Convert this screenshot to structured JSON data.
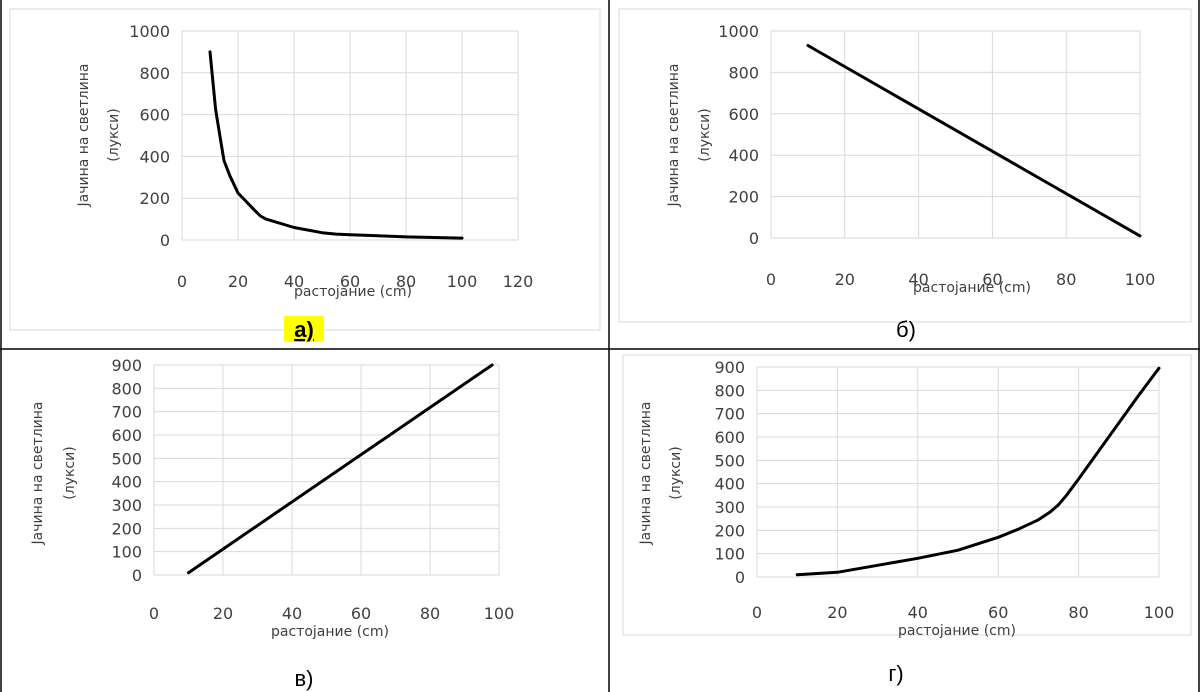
{
  "chart_data": [
    {
      "id": "a",
      "type": "line",
      "xlabel": "растојание (cm)",
      "ylabel_line1": "Јачина на светлина",
      "ylabel_line2": "(лукси)",
      "caption": "а)",
      "caption_highlight": "#ffff00",
      "xlim": [
        0,
        120
      ],
      "ylim": [
        0,
        1000
      ],
      "xticks": [
        0,
        20,
        40,
        60,
        80,
        100,
        120
      ],
      "yticks": [
        0,
        200,
        400,
        600,
        800,
        1000
      ],
      "grid": true,
      "series": [
        {
          "color": "#000000",
          "x": [
            10,
            12,
            14,
            15,
            17,
            20,
            25,
            28,
            30,
            40,
            50,
            55,
            60,
            70,
            80,
            90,
            100
          ],
          "y": [
            900,
            625,
            460,
            380,
            310,
            225,
            155,
            115,
            100,
            60,
            35,
            28,
            25,
            20,
            15,
            12,
            9
          ]
        }
      ]
    },
    {
      "id": "b",
      "type": "line",
      "xlabel": "растојание (cm)",
      "ylabel_line1": "Јачина на светлина",
      "ylabel_line2": "(лукси)",
      "caption": "б)",
      "xlim": [
        0,
        100
      ],
      "ylim": [
        0,
        1000
      ],
      "xticks": [
        0,
        20,
        40,
        60,
        80,
        100
      ],
      "yticks": [
        0,
        200,
        400,
        600,
        800,
        1000
      ],
      "grid": true,
      "series": [
        {
          "color": "#000000",
          "x": [
            10,
            100
          ],
          "y": [
            930,
            10
          ]
        }
      ]
    },
    {
      "id": "c",
      "type": "line",
      "xlabel": "растојание (cm)",
      "ylabel_line1": "Јачина на светлина",
      "ylabel_line2": "(лукси)",
      "caption": "в)",
      "xlim": [
        0,
        100
      ],
      "ylim": [
        0,
        900
      ],
      "xticks": [
        0,
        20,
        40,
        60,
        80,
        100
      ],
      "yticks": [
        0,
        100,
        200,
        300,
        400,
        500,
        600,
        700,
        800,
        900
      ],
      "grid": true,
      "series": [
        {
          "color": "#000000",
          "x": [
            10,
            98
          ],
          "y": [
            10,
            900
          ]
        }
      ]
    },
    {
      "id": "d",
      "type": "line",
      "xlabel": "растојание (cm)",
      "ylabel_line1": "Јачина на светлина",
      "ylabel_line2": "(лукси)",
      "caption": "г)",
      "xlim": [
        0,
        100
      ],
      "ylim": [
        0,
        900
      ],
      "xticks": [
        0,
        20,
        40,
        60,
        80,
        100
      ],
      "yticks": [
        0,
        100,
        200,
        300,
        400,
        500,
        600,
        700,
        800,
        900
      ],
      "grid": true,
      "series": [
        {
          "color": "#000000",
          "x": [
            10,
            20,
            25,
            30,
            40,
            50,
            60,
            65,
            70,
            73,
            75,
            77,
            80,
            85,
            90,
            95,
            100
          ],
          "y": [
            10,
            20,
            35,
            50,
            80,
            115,
            170,
            205,
            245,
            280,
            310,
            350,
            420,
            540,
            660,
            780,
            895
          ]
        }
      ]
    }
  ]
}
